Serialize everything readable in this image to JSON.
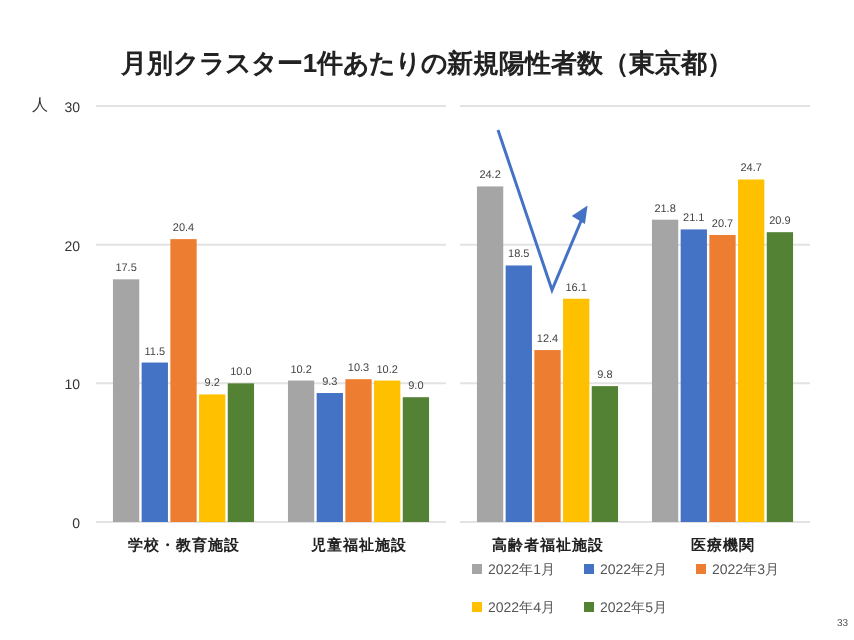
{
  "chart_data": {
    "type": "bar",
    "title": "月別クラスター1件あたりの新規陽性者数（東京都）",
    "ylabel": "人",
    "categories": [
      "学校・教育施設",
      "児童福祉施設",
      "高齢者福祉施設",
      "医療機関"
    ],
    "series": [
      {
        "name": "2022年1月",
        "color": "#a5a5a5",
        "values": [
          17.5,
          10.2,
          24.2,
          21.8
        ],
        "value_labels": [
          "17.5",
          "10.2",
          "24.2",
          "21.8"
        ]
      },
      {
        "name": "2022年2月",
        "color": "#4472c4",
        "values": [
          11.5,
          9.3,
          18.5,
          21.1
        ],
        "value_labels": [
          "11.5",
          "9.3",
          "18.5",
          "21.1"
        ]
      },
      {
        "name": "2022年3月",
        "color": "#ed7d31",
        "values": [
          20.4,
          10.3,
          12.4,
          20.7
        ],
        "value_labels": [
          "20.4",
          "10.3",
          "12.4",
          "20.7"
        ]
      },
      {
        "name": "2022年4月",
        "color": "#ffc000",
        "values": [
          9.2,
          10.2,
          16.1,
          24.7
        ],
        "value_labels": [
          "9.2",
          "10.2",
          "16.1",
          "24.7"
        ]
      },
      {
        "name": "2022年5月",
        "color": "#548235",
        "values": [
          10.0,
          9.0,
          9.8,
          20.9
        ],
        "value_labels": [
          "10.0",
          "9.0",
          "9.8",
          "20.9"
        ]
      }
    ],
    "ylim": [
      0,
      30
    ],
    "yticks": [
      0,
      10,
      20,
      30
    ],
    "grid": "y",
    "legend": "bottom right",
    "annotations": [
      "33"
    ]
  }
}
